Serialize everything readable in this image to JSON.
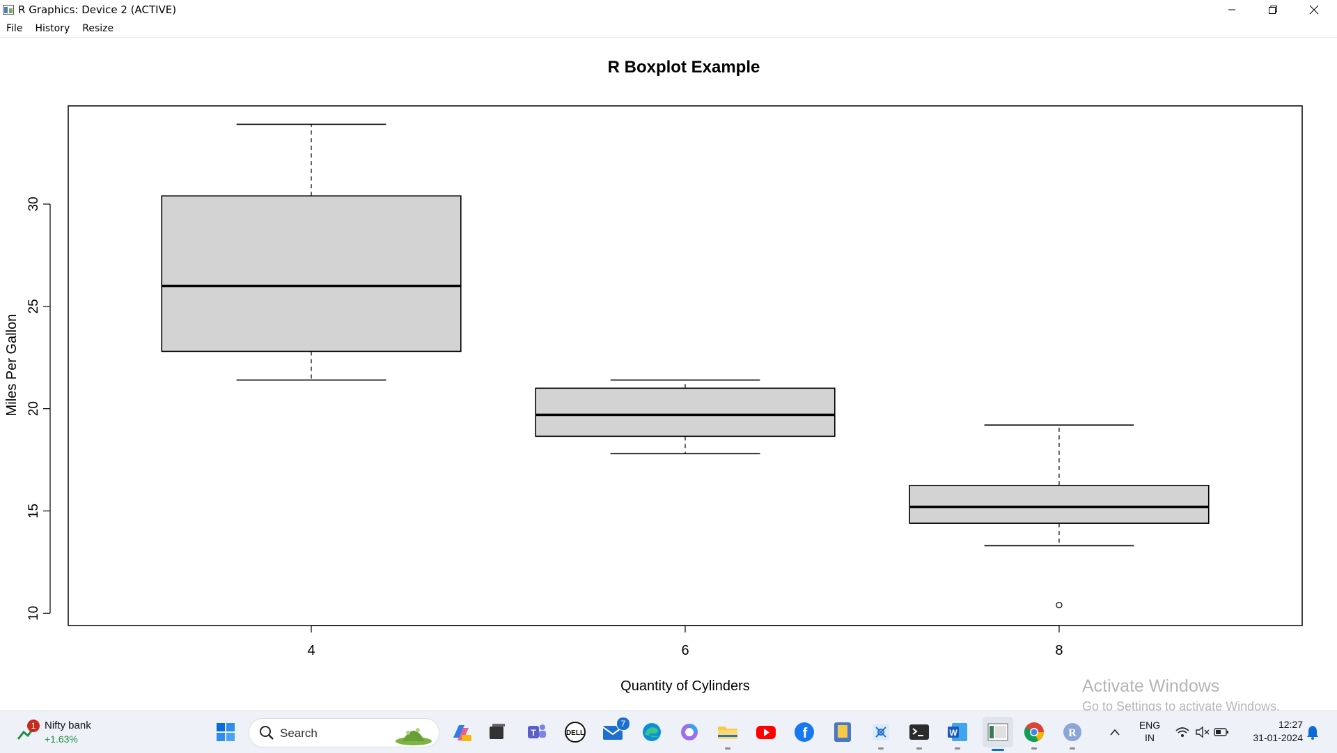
{
  "window": {
    "title": "R Graphics: Device 2 (ACTIVE)",
    "controls": [
      "minimize-icon",
      "restore-icon",
      "close-icon"
    ]
  },
  "menu": [
    "File",
    "History",
    "Resize"
  ],
  "chart_data": {
    "type": "box",
    "title": "R Boxplot Example",
    "xlabel": "Quantity of Cylinders",
    "ylabel": "Miles Per Gallon",
    "categories": [
      "4",
      "6",
      "8"
    ],
    "y_ticks": [
      10,
      15,
      20,
      25,
      30
    ],
    "ylim": [
      9.4,
      34.8
    ],
    "grid": false,
    "boxes": [
      {
        "category": "4",
        "whisker_low": 21.4,
        "q1": 22.8,
        "median": 26.0,
        "q3": 30.4,
        "whisker_high": 33.9,
        "outliers": []
      },
      {
        "category": "6",
        "whisker_low": 17.8,
        "q1": 18.65,
        "median": 19.7,
        "q3": 21.0,
        "whisker_high": 21.4,
        "outliers": []
      },
      {
        "category": "8",
        "whisker_low": 13.3,
        "q1": 14.4,
        "median": 15.2,
        "q3": 16.25,
        "whisker_high": 19.2,
        "outliers": [
          10.4
        ]
      }
    ],
    "colors": {
      "box_fill": "#d3d3d3",
      "stroke": "#000000"
    }
  },
  "watermark": {
    "line1": "Activate Windows",
    "line2": "Go to Settings to activate Windows."
  },
  "taskbar": {
    "widget": {
      "name": "Nifty bank",
      "change": "+1.63%",
      "badge": "1"
    },
    "search_placeholder": "Search",
    "mail_badge": "7",
    "lang": "ENG",
    "region": "IN",
    "time": "12:27",
    "date": "31-01-2024"
  }
}
